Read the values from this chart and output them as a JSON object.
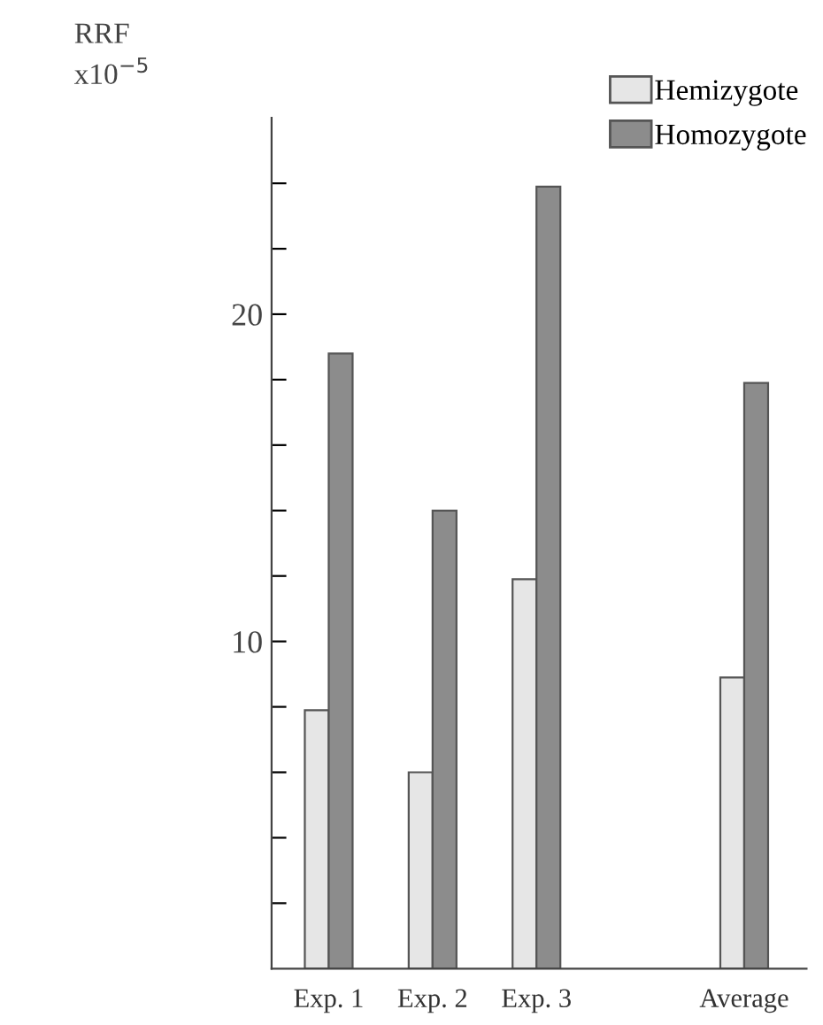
{
  "chart_data": {
    "type": "bar",
    "ylabel": "RRF",
    "annotations": [
      "x10$^{−5}$"
    ],
    "categories": [
      "Exp. 1",
      "Exp. 2",
      "Exp. 3",
      null,
      "Average"
    ],
    "series": [
      {
        "name": "Hemizygote",
        "color": "#e6e6e6",
        "values": [
          7.9,
          6.0,
          11.9,
          null,
          8.9
        ]
      },
      {
        "name": "Homozygote",
        "color": "#8c8c8c",
        "values": [
          18.8,
          14.0,
          23.9,
          null,
          17.9
        ]
      }
    ],
    "ylim": [
      0,
      26
    ],
    "yticks": [
      {
        "value": 2,
        "label": null
      },
      {
        "value": 4,
        "label": null
      },
      {
        "value": 6,
        "label": null
      },
      {
        "value": 8,
        "label": null
      },
      10,
      {
        "value": 12,
        "label": null
      },
      {
        "value": 14,
        "label": null
      },
      {
        "value": 16,
        "label": null
      },
      {
        "value": 18,
        "label": null
      },
      20,
      {
        "value": 22,
        "label": null
      },
      {
        "value": 24,
        "label": null
      }
    ],
    "grid": false,
    "legend": "top right"
  }
}
